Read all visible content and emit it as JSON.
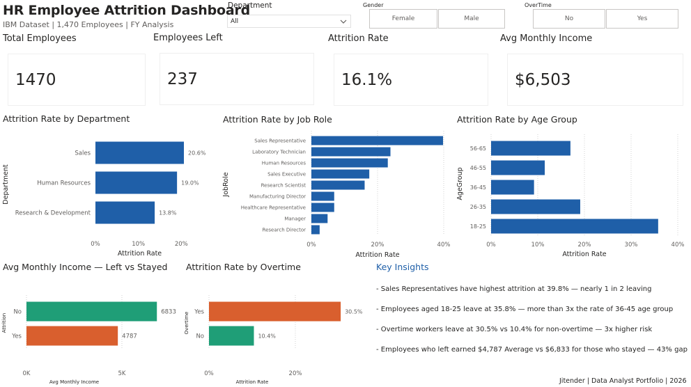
{
  "header": {
    "title": "HR Employee Attrition Dashboard",
    "subtitle": "IBM Dataset | 1,470 Employees | FY Analysis"
  },
  "slicers": {
    "department": {
      "label": "Department",
      "value": "All"
    },
    "gender": {
      "label": "Gender",
      "options": [
        "Female",
        "Male"
      ]
    },
    "overtime": {
      "label": "OverTime",
      "options": [
        "No",
        "Yes"
      ]
    }
  },
  "kpis": {
    "total_employees": {
      "label": "Total Employees",
      "value": "1470"
    },
    "employees_left": {
      "label": "Employees Left",
      "value": "237"
    },
    "attrition_rate": {
      "label": "Attrition Rate",
      "value": "16.1%"
    },
    "avg_monthly_income": {
      "label": "Avg Monthly Income",
      "value": "$6,503"
    }
  },
  "colors": {
    "blue": "#1f5fa8",
    "green": "#1f9e77",
    "orange": "#d95f2e",
    "insight_title": "#1f5fa8"
  },
  "chart_titles": {
    "department": "Attrition Rate by Department",
    "job_role": "Attrition Rate by Job Role",
    "age_group": "Attrition Rate by Age Group",
    "income": "Avg Monthly Income — Left vs Stayed",
    "overtime": "Attrition Rate by Overtime"
  },
  "insights": {
    "title": "Key Insights",
    "items": [
      "- Sales Representatives have highest attrition at 39.8% — nearly 1 in 2 leaving",
      "- Employees aged 18-25 leave at 35.8% — more than 3x the rate of 36-45 age group",
      "- Overtime workers leave at 30.5% vs 10.4% for non-overtime — 3x higher risk",
      "- Employees who left earned $4,787 Average vs $6,833 for those who stayed — 43% gap"
    ]
  },
  "footer": "Jitender | Data Analyst Portfolio | 2026",
  "chart_data": [
    {
      "id": "department",
      "type": "bar",
      "orientation": "horizontal",
      "categories": [
        "Sales",
        "Human Resources",
        "Research & Development"
      ],
      "values": [
        20.6,
        19.0,
        13.8
      ],
      "data_labels": [
        "20.6%",
        "19.0%",
        "13.8%"
      ],
      "xlabel": "Attrition Rate",
      "ylabel": "Department",
      "xlim": [
        0,
        20.6
      ],
      "xticks": [
        0,
        10,
        20
      ],
      "xtick_labels": [
        "0%",
        "10%",
        "20%"
      ],
      "color": "#1f5fa8",
      "grid": false
    },
    {
      "id": "job_role",
      "type": "bar",
      "orientation": "horizontal",
      "categories": [
        "Sales Representative",
        "Laboratory Technician",
        "Human Resources",
        "Sales Executive",
        "Research Scientist",
        "Manufacturing Director",
        "Healthcare Representative",
        "Manager",
        "Research Director"
      ],
      "values": [
        39.8,
        23.9,
        23.1,
        17.5,
        16.1,
        6.9,
        6.9,
        4.9,
        2.5
      ],
      "xlabel": "Attrition Rate",
      "ylabel": "JobRole",
      "xlim": [
        0,
        40
      ],
      "xticks": [
        0,
        20,
        40
      ],
      "xtick_labels": [
        "0%",
        "20%",
        "40%"
      ],
      "color": "#1f5fa8",
      "grid": true
    },
    {
      "id": "age_group",
      "type": "bar",
      "orientation": "horizontal",
      "categories": [
        "56-65",
        "46-55",
        "36-45",
        "26-35",
        "18-25"
      ],
      "values": [
        17.0,
        11.5,
        9.2,
        19.1,
        35.8
      ],
      "xlabel": "Attrition Rate",
      "ylabel": "AgeGroup",
      "xlim": [
        0,
        40
      ],
      "xticks": [
        0,
        10,
        20,
        30,
        40
      ],
      "xtick_labels": [
        "0%",
        "10%",
        "20%",
        "30%",
        "40%"
      ],
      "color": "#1f5fa8",
      "grid": true
    },
    {
      "id": "income",
      "type": "bar",
      "orientation": "horizontal",
      "categories": [
        "No",
        "Yes"
      ],
      "values": [
        6833,
        4787
      ],
      "data_labels": [
        "6833",
        "4787"
      ],
      "colors": [
        "#1f9e77",
        "#d95f2e"
      ],
      "xlabel": "Avg Monthly Income",
      "ylabel": "Attrition",
      "xlim": [
        0,
        5000
      ],
      "xticks": [
        0,
        5000
      ],
      "xtick_labels": [
        "0K",
        "5K"
      ],
      "grid": true
    },
    {
      "id": "overtime",
      "type": "bar",
      "orientation": "horizontal",
      "categories": [
        "Yes",
        "No"
      ],
      "values": [
        30.5,
        10.4
      ],
      "data_labels": [
        "30.5%",
        "10.4%"
      ],
      "colors": [
        "#d95f2e",
        "#1f9e77"
      ],
      "xlabel": "Attrition Rate",
      "ylabel": "Overtime",
      "xlim": [
        0,
        20
      ],
      "xticks": [
        0,
        20
      ],
      "xtick_labels": [
        "0%",
        "20%"
      ],
      "grid": true
    }
  ]
}
